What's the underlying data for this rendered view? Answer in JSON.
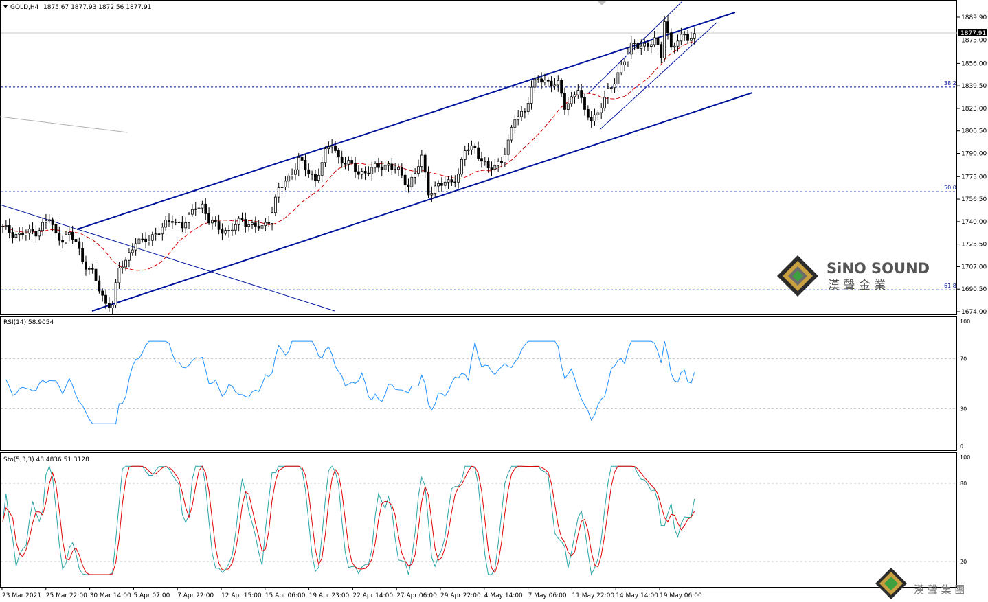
{
  "header": {
    "symbol": "GOLD,H4",
    "ohlc": "1875.67 1877.93 1872.56 1877.91"
  },
  "colors": {
    "candle": "#000000",
    "channel": "#00139c",
    "ma": "#d40000",
    "rsi": "#1e90ff",
    "stoch_main": "#2aa3a8",
    "stoch_signal": "#e00000",
    "fib_line": "#00139c",
    "grid": "#c8c8c8"
  },
  "price_axis": {
    "ticks": [
      "1889.90",
      "1873.00",
      "1856.00",
      "1839.50",
      "1823.00",
      "1806.50",
      "1790.00",
      "1773.00",
      "1756.50",
      "1740.00",
      "1723.50",
      "1707.00",
      "1690.50",
      "1674.00"
    ],
    "current_price": "1877.91"
  },
  "fib_levels": [
    {
      "label": "38.2",
      "price": 1838.6
    },
    {
      "label": "50.0",
      "price": 1762.0
    },
    {
      "label": "61.8",
      "price": 1690.0
    }
  ],
  "time_axis": {
    "labels": [
      "23 Mar 2021",
      "25 Mar 22:00",
      "30 Mar 14:00",
      "5 Apr 07:00",
      "7 Apr 22:00",
      "12 Apr 15:00",
      "15 Apr 06:00",
      "19 Apr 23:00",
      "22 Apr 14:00",
      "27 Apr 06:00",
      "29 Apr 22:00",
      "4 May 14:00",
      "7 May 06:00",
      "11 May 22:00",
      "14 May 14:00",
      "19 May 06:00"
    ]
  },
  "rsi_panel": {
    "title": "RSI(14) 58.9054",
    "levels": [
      "100",
      "70",
      "30",
      "0"
    ]
  },
  "stoch_panel": {
    "title": "Sto(5,3,3) 48.4836 51.3128",
    "levels": [
      "100",
      "80",
      "20"
    ]
  },
  "logo": {
    "brand": "SiNO SOUND",
    "chinese": "漢 聲 金 業",
    "chinese_group": "漢 聲 集 團"
  },
  "chart_data": {
    "type": "candlestick",
    "title": "GOLD,H4",
    "ylim": [
      1670,
      1900
    ],
    "anchors": [
      [
        0,
        1735
      ],
      [
        5,
        1730
      ],
      [
        10,
        1733
      ],
      [
        14,
        1742
      ],
      [
        16,
        1730
      ],
      [
        18,
        1728
      ],
      [
        20,
        1730
      ],
      [
        22,
        1725
      ],
      [
        24,
        1712
      ],
      [
        27,
        1702
      ],
      [
        29,
        1690
      ],
      [
        31,
        1680
      ],
      [
        33,
        1680
      ],
      [
        35,
        1704
      ],
      [
        37,
        1712
      ],
      [
        40,
        1726
      ],
      [
        42,
        1724
      ],
      [
        45,
        1730
      ],
      [
        48,
        1735
      ],
      [
        51,
        1742
      ],
      [
        54,
        1737
      ],
      [
        56,
        1742
      ],
      [
        58,
        1752
      ],
      [
        60,
        1752
      ],
      [
        62,
        1740
      ],
      [
        65,
        1736
      ],
      [
        68,
        1732
      ],
      [
        72,
        1742
      ],
      [
        75,
        1737
      ],
      [
        78,
        1735
      ],
      [
        80,
        1742
      ],
      [
        83,
        1763
      ],
      [
        86,
        1772
      ],
      [
        89,
        1786
      ],
      [
        91,
        1778
      ],
      [
        94,
        1771
      ],
      [
        97,
        1790
      ],
      [
        99,
        1797
      ],
      [
        101,
        1787
      ],
      [
        104,
        1782
      ],
      [
        107,
        1776
      ],
      [
        110,
        1777
      ],
      [
        113,
        1780
      ],
      [
        116,
        1782
      ],
      [
        119,
        1776
      ],
      [
        122,
        1767
      ],
      [
        124,
        1776
      ],
      [
        126,
        1786
      ],
      [
        128,
        1762
      ],
      [
        131,
        1767
      ],
      [
        134,
        1768
      ],
      [
        137,
        1775
      ],
      [
        139,
        1792
      ],
      [
        142,
        1794
      ],
      [
        144,
        1786
      ],
      [
        146,
        1778
      ],
      [
        148,
        1780
      ],
      [
        150,
        1786
      ],
      [
        152,
        1798
      ],
      [
        154,
        1815
      ],
      [
        157,
        1822
      ],
      [
        159,
        1838
      ],
      [
        161,
        1844
      ],
      [
        164,
        1843
      ],
      [
        167,
        1840
      ],
      [
        169,
        1824
      ],
      [
        171,
        1831
      ],
      [
        173,
        1838
      ],
      [
        175,
        1819
      ],
      [
        177,
        1816
      ],
      [
        179,
        1820
      ],
      [
        181,
        1830
      ],
      [
        183,
        1838
      ],
      [
        185,
        1850
      ],
      [
        187,
        1858
      ],
      [
        189,
        1868
      ],
      [
        192,
        1871
      ],
      [
        194,
        1868
      ],
      [
        196,
        1873
      ],
      [
        198,
        1862
      ],
      [
        199,
        1890
      ],
      [
        201,
        1866
      ],
      [
        203,
        1872
      ],
      [
        205,
        1878
      ],
      [
        207,
        1875
      ],
      [
        208,
        1877.91
      ]
    ]
  }
}
